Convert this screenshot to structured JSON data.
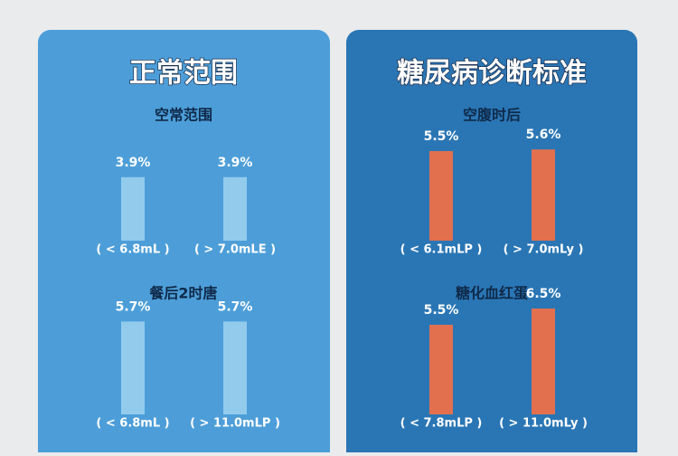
{
  "panels": [
    {
      "title": "正常范围"
    },
    {
      "title": "糖尿病诊断标准"
    }
  ],
  "chart_data": [
    {
      "type": "bar",
      "title": "空常范围",
      "categories": [
        "( < 6.8mL )",
        "( > 7.0mLE )"
      ],
      "values": [
        3.9,
        3.9
      ],
      "value_labels": [
        "3.9%",
        "3.9%"
      ],
      "color": "#93cbed"
    },
    {
      "type": "bar",
      "title": "餐后2时唐",
      "categories": [
        "( < 6.8mL )",
        "( > 11.0mLP )"
      ],
      "values": [
        5.7,
        5.7
      ],
      "value_labels": [
        "5.7%",
        "5.7%"
      ],
      "color": "#93cbed"
    },
    {
      "type": "bar",
      "title": "空腹时后",
      "categories": [
        "( < 6.1mLP )",
        "( > 7.0mLy )"
      ],
      "values": [
        5.5,
        5.6
      ],
      "value_labels": [
        "5.5%",
        "5.6%"
      ],
      "color": "#e2704f"
    },
    {
      "type": "bar",
      "title": "糖化血红蛋",
      "categories": [
        "( < 7.8mLP )",
        "( > 11.0mLy )"
      ],
      "values": [
        5.5,
        6.5
      ],
      "value_labels": [
        "5.5%",
        "6.5%"
      ],
      "color": "#e2704f"
    }
  ]
}
